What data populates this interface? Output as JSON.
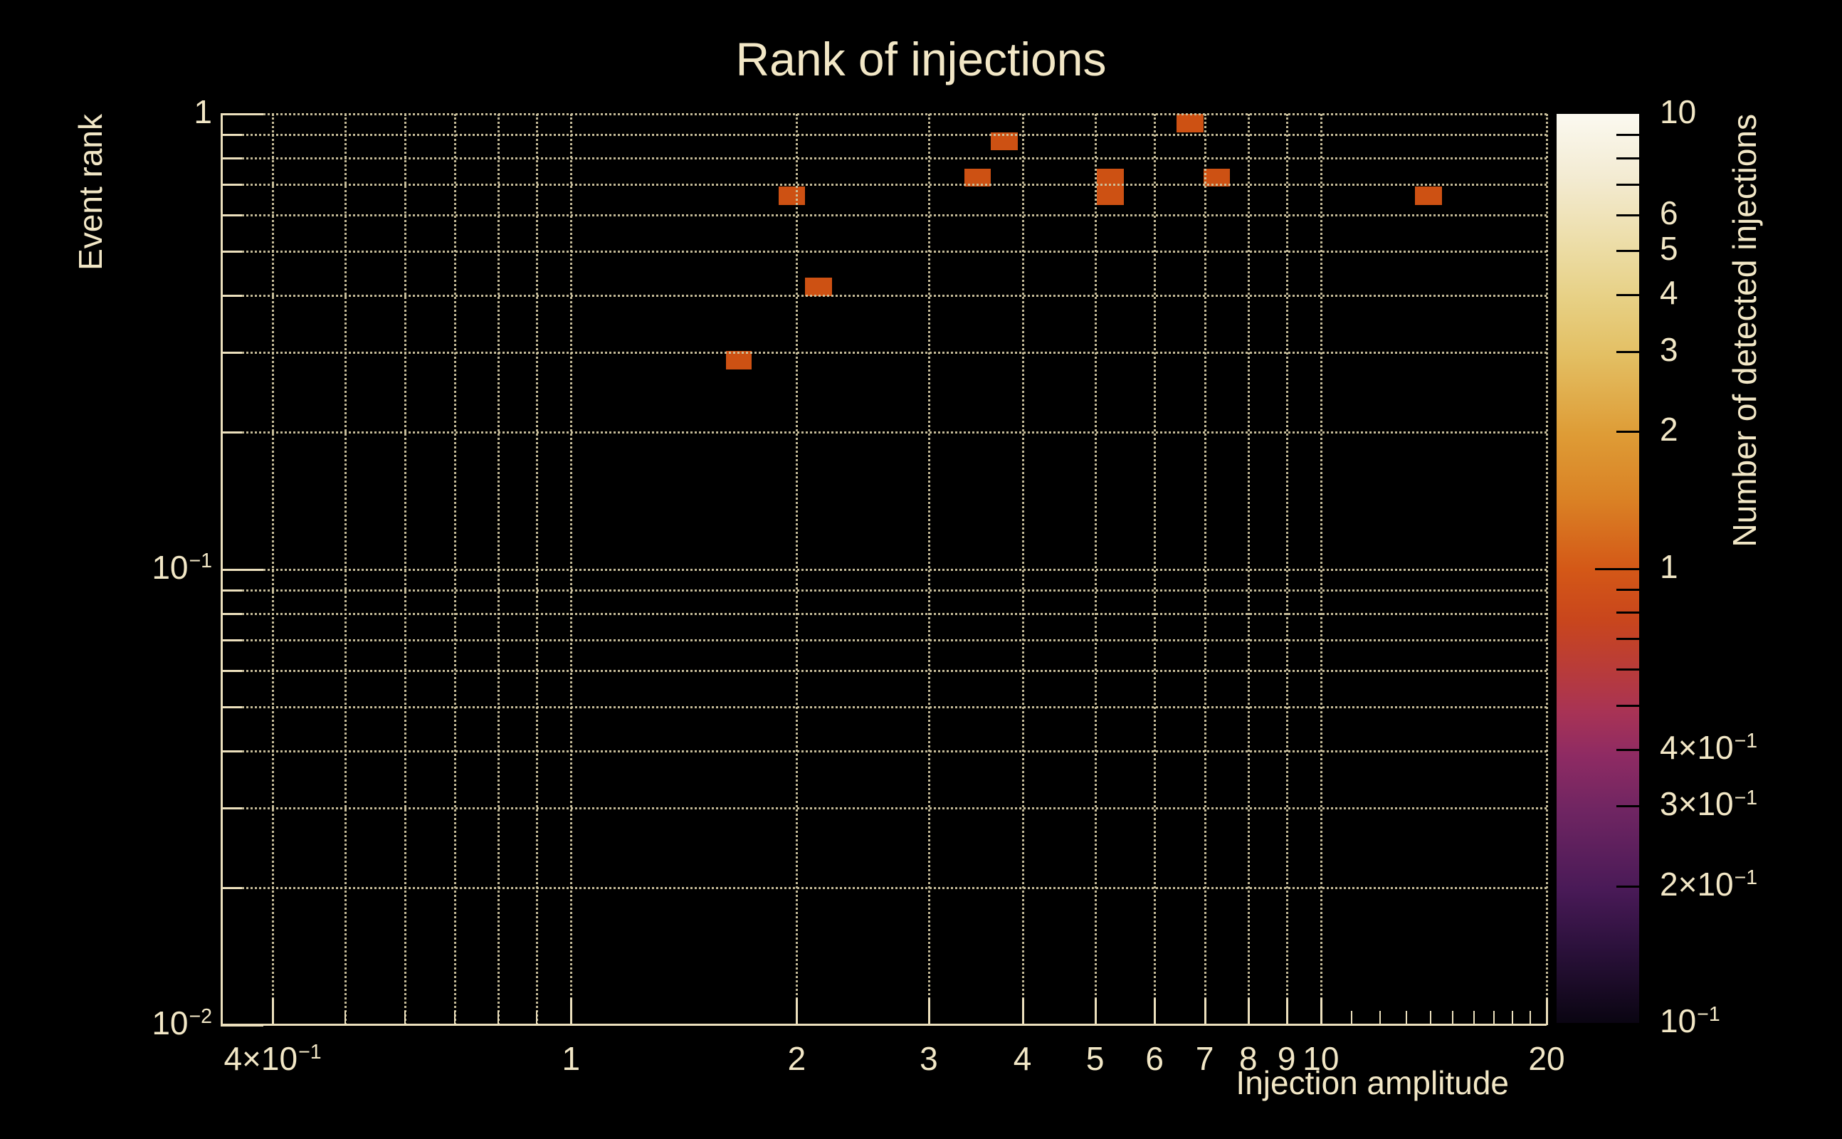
{
  "figure": {
    "background": "#000000",
    "text_color": "#f2e7c6",
    "axis_color": "#ece0bd",
    "grid_color": "#cfc5a0"
  },
  "chart_data": {
    "type": "heatmap",
    "title": "Rank of injections",
    "xlabel": "Injection amplitude",
    "ylabel": "Event rank",
    "zlabel": "Number of detected injections",
    "x_scale": "log",
    "y_scale": "log",
    "z_scale": "log",
    "x_range": [
      0.341,
      20
    ],
    "y_range": [
      0.01,
      1.0
    ],
    "z_range": [
      0.1,
      10
    ],
    "grid": true,
    "x_ticks": [
      {
        "v": 0.4,
        "label": "4×10^−1"
      },
      {
        "v": 1,
        "label": "1"
      },
      {
        "v": 2,
        "label": "2"
      },
      {
        "v": 3,
        "label": "3"
      },
      {
        "v": 4,
        "label": "4"
      },
      {
        "v": 5,
        "label": "5"
      },
      {
        "v": 6,
        "label": "6"
      },
      {
        "v": 7,
        "label": "7"
      },
      {
        "v": 8,
        "label": "8"
      },
      {
        "v": 9,
        "label": "9"
      },
      {
        "v": 10,
        "label": "10"
      },
      {
        "v": 20,
        "label": "20"
      }
    ],
    "x_minor_ticks": [
      0.5,
      0.6,
      0.7,
      0.8,
      0.9,
      11,
      12,
      13,
      14,
      15,
      16,
      17,
      18,
      19
    ],
    "y_ticks": [
      {
        "v": 1,
        "label": "1"
      },
      {
        "v": 0.1,
        "label": "10^−1"
      },
      {
        "v": 0.01,
        "label": "10^−2"
      }
    ],
    "y_minor_ticks": [
      0.9,
      0.8,
      0.7,
      0.6,
      0.5,
      0.4,
      0.3,
      0.2,
      0.09,
      0.08,
      0.07,
      0.06,
      0.05,
      0.04,
      0.03,
      0.02
    ],
    "grid_x_values": [
      0.4,
      0.5,
      0.6,
      0.7,
      0.8,
      0.9,
      1,
      2,
      3,
      4,
      5,
      6,
      7,
      8,
      9,
      10,
      20
    ],
    "grid_y_values": [
      1,
      0.9,
      0.8,
      0.7,
      0.6,
      0.5,
      0.4,
      0.3,
      0.2,
      0.1,
      0.09,
      0.08,
      0.07,
      0.06,
      0.05,
      0.04,
      0.03,
      0.02
    ],
    "cells": [
      {
        "amp_lo": 1.61,
        "amp_hi": 1.74,
        "rank_lo": 0.275,
        "rank_hi": 0.302,
        "count": 1
      },
      {
        "amp_lo": 1.89,
        "amp_hi": 2.05,
        "rank_lo": 0.631,
        "rank_hi": 0.692,
        "count": 1
      },
      {
        "amp_lo": 2.05,
        "amp_hi": 2.23,
        "rank_lo": 0.398,
        "rank_hi": 0.437,
        "count": 1
      },
      {
        "amp_lo": 3.35,
        "amp_hi": 3.63,
        "rank_lo": 0.692,
        "rank_hi": 0.759,
        "count": 1
      },
      {
        "amp_lo": 3.63,
        "amp_hi": 3.94,
        "rank_lo": 0.832,
        "rank_hi": 0.912,
        "count": 1
      },
      {
        "amp_lo": 5.03,
        "amp_hi": 5.46,
        "rank_lo": 0.692,
        "rank_hi": 0.759,
        "count": 1
      },
      {
        "amp_lo": 5.03,
        "amp_hi": 5.46,
        "rank_lo": 0.631,
        "rank_hi": 0.692,
        "count": 1
      },
      {
        "amp_lo": 6.42,
        "amp_hi": 6.97,
        "rank_lo": 0.912,
        "rank_hi": 1.0,
        "count": 1
      },
      {
        "amp_lo": 6.97,
        "amp_hi": 7.56,
        "rank_lo": 0.692,
        "rank_hi": 0.759,
        "count": 1
      },
      {
        "amp_lo": 13.36,
        "amp_hi": 14.49,
        "rank_lo": 0.631,
        "rank_hi": 0.692,
        "count": 1
      }
    ],
    "cell_color_count1": "#cd5113",
    "colorbar": {
      "ticks_labeled": [
        {
          "v": 10,
          "label": "10"
        },
        {
          "v": 6,
          "label": "6"
        },
        {
          "v": 5,
          "label": "5"
        },
        {
          "v": 4,
          "label": "4"
        },
        {
          "v": 3,
          "label": "3"
        },
        {
          "v": 2,
          "label": "2"
        },
        {
          "v": 1,
          "label": "1"
        },
        {
          "v": 0.4,
          "label": "4×10^−1"
        },
        {
          "v": 0.3,
          "label": "3×10^−1"
        },
        {
          "v": 0.2,
          "label": "2×10^−1"
        },
        {
          "v": 0.1,
          "label": "10^−1"
        }
      ],
      "major_tick_values": [
        1
      ],
      "minor_tick_values": [
        9,
        8,
        7,
        6,
        5,
        4,
        3,
        2,
        0.9,
        0.8,
        0.7,
        0.6,
        0.5,
        0.4,
        0.3,
        0.2
      ],
      "gradient_stops": [
        [
          0,
          "#fbf9f0"
        ],
        [
          7,
          "#f3ebd2"
        ],
        [
          14.9,
          "#ecdca4"
        ],
        [
          20.4,
          "#e7d084"
        ],
        [
          26.6,
          "#e3bf63"
        ],
        [
          35.2,
          "#de9c36"
        ],
        [
          42.3,
          "#da8225"
        ],
        [
          50.1,
          "#d45817"
        ],
        [
          55.6,
          "#c9461c"
        ],
        [
          61.9,
          "#b63a3e"
        ],
        [
          65.8,
          "#a83355"
        ],
        [
          70.5,
          "#8f2b63"
        ],
        [
          76.7,
          "#6f2562"
        ],
        [
          85.4,
          "#491a57"
        ],
        [
          91.6,
          "#2c113c"
        ],
        [
          100,
          "#0a0512"
        ]
      ]
    }
  }
}
